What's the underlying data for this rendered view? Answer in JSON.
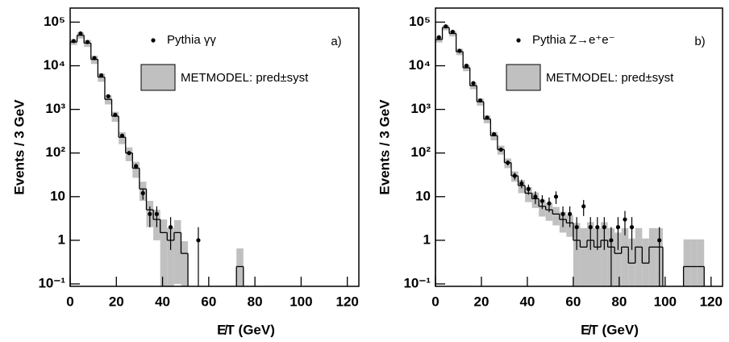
{
  "chart_data": [
    {
      "type": "histogram",
      "panel_label": "a)",
      "x_label": "E̸T (GeV)",
      "y_label": "Events / 3 GeV",
      "log_y": true,
      "xlim": [
        0,
        125
      ],
      "xticks": [
        0,
        20,
        40,
        60,
        80,
        100,
        120
      ],
      "ylim": [
        0.088,
        210000
      ],
      "yticks": [
        {
          "value": 0.1,
          "label": "10⁻¹"
        },
        1,
        10,
        {
          "value": 100,
          "label": "10²"
        },
        {
          "value": 1000,
          "label": "10³"
        },
        {
          "value": 10000,
          "label": "10⁴"
        },
        {
          "value": 100000,
          "label": "10⁵"
        }
      ],
      "bins": [
        0,
        3,
        6,
        9,
        12,
        15,
        18,
        21,
        24,
        27,
        30,
        33,
        36,
        39,
        42,
        45,
        48,
        51,
        54,
        57,
        60,
        63,
        66,
        69,
        72,
        75,
        78
      ],
      "series": [
        {
          "name": "Pythia  γγ",
          "color": "#000000",
          "values": [
            37000,
            55000,
            35000,
            15000,
            6000,
            2000,
            750,
            250,
            100,
            50,
            12,
            4,
            4,
            null,
            2,
            null,
            null,
            null,
            1,
            null,
            null,
            null,
            null,
            null,
            null,
            null
          ],
          "errors": [
            200,
            230,
            190,
            120,
            80,
            45,
            27,
            16,
            10,
            7,
            3.5,
            2,
            2,
            null,
            1.4,
            null,
            null,
            null,
            1,
            null,
            null,
            null,
            null,
            null,
            null,
            null
          ]
        },
        {
          "name": "METMODEL: pred±syst",
          "color": "#c0c0c0",
          "values": [
            35000,
            50000,
            33000,
            14000,
            5500,
            1700,
            700,
            230,
            100,
            45,
            15,
            5,
            3,
            1.5,
            1,
            1.5,
            0.5,
            null,
            null,
            null,
            null,
            null,
            null,
            null,
            0.25,
            null
          ],
          "syst": [
            5000,
            8000,
            6000,
            3000,
            1200,
            400,
            180,
            70,
            35,
            18,
            7,
            3,
            2,
            1.5,
            0.95,
            1.4,
            0.45,
            null,
            null,
            null,
            null,
            null,
            null,
            null,
            0.4,
            null
          ]
        }
      ]
    },
    {
      "type": "histogram",
      "panel_label": "b)",
      "x_label": "E̸T (GeV)",
      "y_label": "Events / 3 GeV",
      "log_y": true,
      "xlim": [
        0,
        125
      ],
      "xticks": [
        0,
        20,
        40,
        60,
        80,
        100,
        120
      ],
      "ylim": [
        0.088,
        210000
      ],
      "yticks": [
        {
          "value": 0.1,
          "label": "10⁻¹"
        },
        1,
        10,
        {
          "value": 100,
          "label": "10²"
        },
        {
          "value": 1000,
          "label": "10³"
        },
        {
          "value": 10000,
          "label": "10⁴"
        },
        {
          "value": 100000,
          "label": "10⁵"
        }
      ],
      "bins": [
        0,
        3,
        6,
        9,
        12,
        15,
        18,
        21,
        24,
        27,
        30,
        33,
        36,
        39,
        42,
        45,
        48,
        51,
        54,
        57,
        60,
        63,
        66,
        69,
        72,
        75,
        78,
        81,
        84,
        87,
        90,
        93,
        96,
        99,
        102,
        105,
        108,
        111,
        114,
        117,
        120
      ],
      "series": [
        {
          "name": "Pythia Z→e⁺e⁻",
          "color": "#000000",
          "values": [
            45000,
            80000,
            60000,
            22000,
            10000,
            4000,
            1600,
            650,
            270,
            120,
            60,
            30,
            20,
            15,
            10,
            8,
            7,
            10,
            4,
            4,
            2,
            6,
            2,
            2,
            2,
            1,
            2,
            3,
            2,
            null,
            null,
            null,
            1,
            null,
            null,
            null,
            null,
            null,
            null,
            null
          ],
          "errors": [
            210,
            280,
            245,
            150,
            100,
            63,
            40,
            25,
            16,
            11,
            8,
            5.5,
            4.5,
            3.9,
            3.2,
            2.8,
            2.6,
            3.2,
            2,
            2,
            1.4,
            2.4,
            1.4,
            1.4,
            1.4,
            1,
            1.4,
            1.7,
            1.4,
            null,
            null,
            null,
            1,
            null,
            null,
            null,
            null,
            null,
            null,
            null
          ]
        },
        {
          "name": "METMODEL: pred±syst",
          "color": "#c0c0c0",
          "values": [
            40000,
            75000,
            55000,
            21000,
            9000,
            3500,
            1500,
            600,
            250,
            120,
            60,
            30,
            18,
            12,
            9,
            6,
            5,
            4,
            3,
            2.5,
            1,
            0.7,
            1,
            0.7,
            1,
            0.7,
            0.5,
            0.7,
            0.3,
            0.7,
            0.3,
            0.7,
            0.7,
            null,
            null,
            null,
            0.25,
            0.25,
            0.25,
            null
          ],
          "syst": [
            6000,
            10000,
            8000,
            3500,
            1500,
            600,
            280,
            120,
            55,
            28,
            15,
            8,
            6,
            4.5,
            3.5,
            2.5,
            2.2,
            1.8,
            1.5,
            1.3,
            1.5,
            1.2,
            1.6,
            1.2,
            1.6,
            1.2,
            1,
            1.2,
            0.8,
            1.2,
            0.8,
            1.2,
            1.2,
            null,
            null,
            null,
            0.8,
            0.8,
            0.8,
            null
          ]
        }
      ]
    }
  ]
}
